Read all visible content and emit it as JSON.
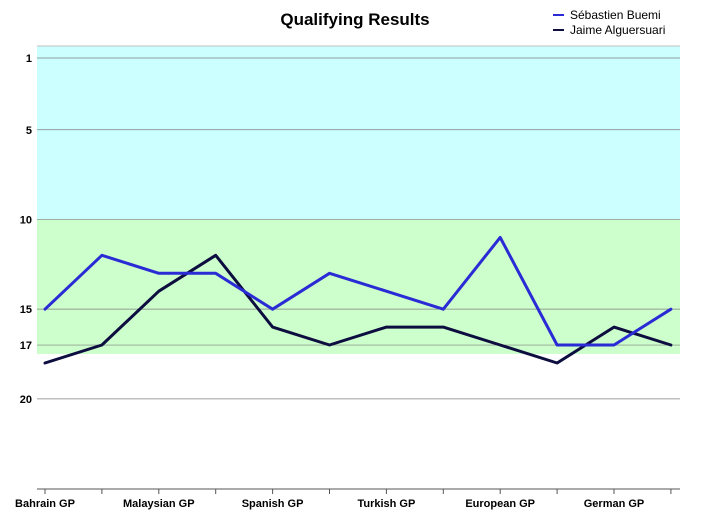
{
  "chart_data": {
    "type": "line",
    "title": "Qualifying Results",
    "xlabel": "",
    "ylabel": "",
    "y_inverted": true,
    "ylim": [
      1,
      24
    ],
    "yticks": [
      1,
      5,
      10,
      15,
      17,
      20
    ],
    "bands": [
      {
        "from": 0,
        "to": 10,
        "color": "#ccffff"
      },
      {
        "from": 10,
        "to": 17.5,
        "color": "#ccffcc"
      }
    ],
    "grid": true,
    "legend_position": "top-right",
    "categories": [
      "Bahrain GP",
      "",
      "Malaysian GP",
      "",
      "Spanish GP",
      "",
      "Turkish GP",
      "",
      "European GP",
      "",
      "German GP",
      ""
    ],
    "category_labels": [
      "Bahrain GP",
      "Malaysian GP",
      "Spanish GP",
      "Turkish GP",
      "European GP",
      "German GP"
    ],
    "series": [
      {
        "name": "Sébastien Buemi",
        "color": "#2b2bd6",
        "values": [
          15,
          12,
          13,
          13,
          15,
          13,
          14,
          15,
          11,
          17,
          17,
          15
        ]
      },
      {
        "name": "Jaime Alguersuari",
        "color": "#0d0d40",
        "values": [
          18,
          17,
          14,
          12,
          16,
          17,
          16,
          16,
          17,
          18,
          16,
          17
        ]
      }
    ]
  }
}
